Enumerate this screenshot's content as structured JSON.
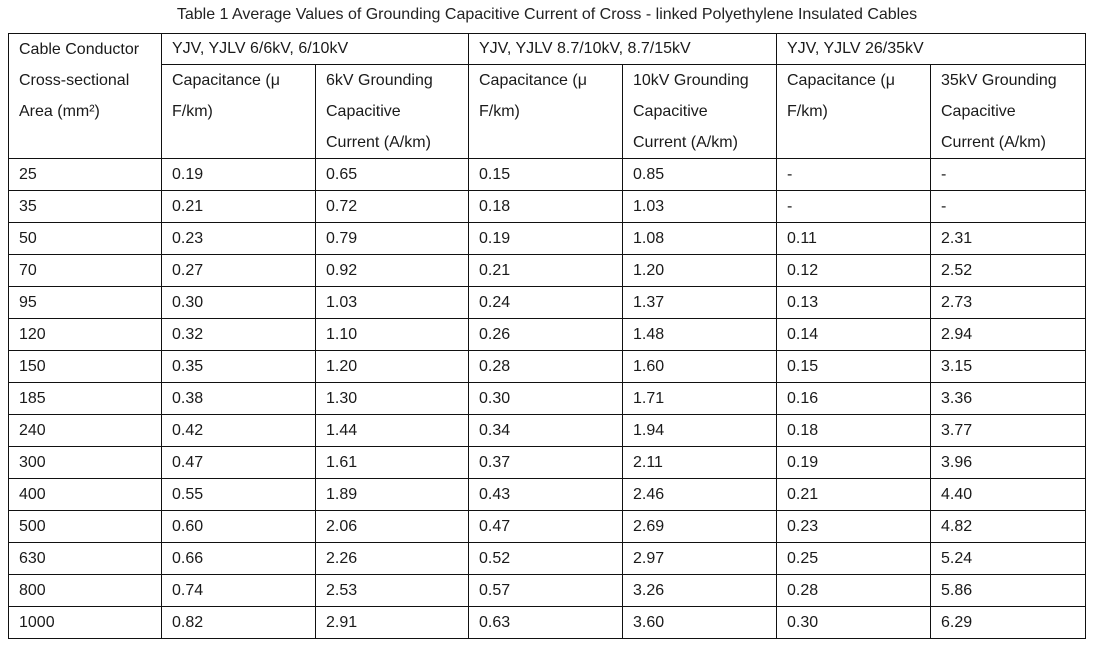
{
  "caption": "Table 1 Average Values of Grounding Capacitive Current of Cross - linked Polyethylene Insulated Cables",
  "header": {
    "first_col": [
      "Cable Conductor",
      "Cross-sectional",
      "Area (mm²)"
    ],
    "groups": [
      "YJV, YJLV 6/6kV, 6/10kV",
      "YJV, YJLV 8.7/10kV, 8.7/15kV",
      "YJV, YJLV 26/35kV"
    ],
    "sub": [
      [
        "Capacitance (μ",
        "F/km)"
      ],
      [
        "6kV Grounding",
        "Capacitive",
        "Current (A/km)"
      ],
      [
        "Capacitance (μ",
        "F/km)"
      ],
      [
        "10kV Grounding",
        "Capacitive",
        "Current (A/km)"
      ],
      [
        "Capacitance (μ",
        "F/km)"
      ],
      [
        "35kV Grounding",
        "Capacitive",
        "Current (A/km)"
      ]
    ]
  },
  "rows": [
    [
      "25",
      "0.19",
      "0.65",
      "0.15",
      "0.85",
      "-",
      "-"
    ],
    [
      "35",
      "0.21",
      "0.72",
      "0.18",
      "1.03",
      "-",
      "-"
    ],
    [
      "50",
      "0.23",
      "0.79",
      "0.19",
      "1.08",
      "0.11",
      "2.31"
    ],
    [
      "70",
      "0.27",
      "0.92",
      "0.21",
      "1.20",
      "0.12",
      "2.52"
    ],
    [
      "95",
      "0.30",
      "1.03",
      "0.24",
      "1.37",
      "0.13",
      "2.73"
    ],
    [
      "120",
      "0.32",
      "1.10",
      "0.26",
      "1.48",
      "0.14",
      "2.94"
    ],
    [
      "150",
      "0.35",
      "1.20",
      "0.28",
      "1.60",
      "0.15",
      "3.15"
    ],
    [
      "185",
      "0.38",
      "1.30",
      "0.30",
      "1.71",
      "0.16",
      "3.36"
    ],
    [
      "240",
      "0.42",
      "1.44",
      "0.34",
      "1.94",
      "0.18",
      "3.77"
    ],
    [
      "300",
      "0.47",
      "1.61",
      "0.37",
      "2.11",
      "0.19",
      "3.96"
    ],
    [
      "400",
      "0.55",
      "1.89",
      "0.43",
      "2.46",
      "0.21",
      "4.40"
    ],
    [
      "500",
      "0.60",
      "2.06",
      "0.47",
      "2.69",
      "0.23",
      "4.82"
    ],
    [
      "630",
      "0.66",
      "2.26",
      "0.52",
      "2.97",
      "0.25",
      "5.24"
    ],
    [
      "800",
      "0.74",
      "2.53",
      "0.57",
      "3.26",
      "0.28",
      "5.86"
    ],
    [
      "1000",
      "0.82",
      "2.91",
      "0.63",
      "3.60",
      "0.30",
      "6.29"
    ]
  ]
}
